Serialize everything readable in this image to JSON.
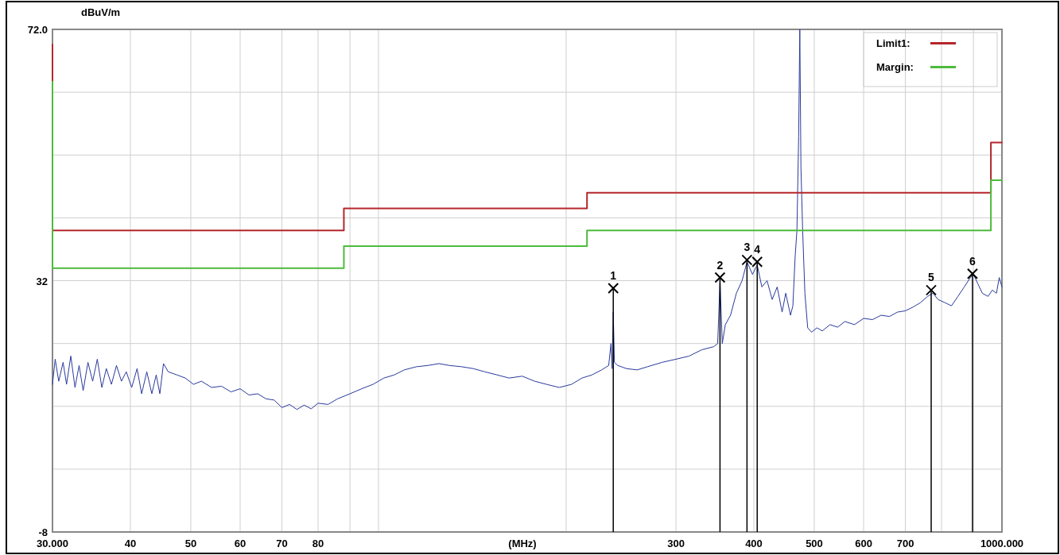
{
  "chart_data": {
    "type": "line",
    "ylabel": "dBuV/m",
    "xlabel": "(MHz)",
    "log": "x",
    "grid": true,
    "legend": "top right",
    "xlim": [
      30,
      1000
    ],
    "ylim": [
      -8,
      72
    ],
    "xticks": [
      {
        "value": 30,
        "label": "30.000"
      },
      40,
      50,
      60,
      70,
      80,
      {
        "value": 90,
        "label": null
      },
      {
        "value": 100,
        "label": null
      },
      {
        "value": 200,
        "label": null
      },
      300,
      400,
      500,
      600,
      700,
      {
        "value": 800,
        "label": null
      },
      {
        "value": 900,
        "label": null
      },
      {
        "value": 1000,
        "label": "1000.000"
      }
    ],
    "yticks": [
      {
        "value": 72,
        "label": "72.0"
      },
      {
        "value": 62,
        "label": null
      },
      {
        "value": 52,
        "label": null
      },
      {
        "value": 42,
        "label": null
      },
      32,
      {
        "value": 22,
        "label": null
      },
      {
        "value": 12,
        "label": null
      },
      {
        "value": 2,
        "label": null
      },
      -8
    ],
    "series": [
      {
        "color": "#2a3a9c",
        "x": [
          30,
          30.3,
          30.7,
          31.2,
          31.6,
          32.1,
          32.6,
          33.1,
          33.6,
          34.2,
          34.8,
          35.4,
          36,
          36.6,
          37.3,
          38,
          38.7,
          39.4,
          40.2,
          41,
          41.7,
          42.5,
          43.3,
          44,
          44.6,
          45.2,
          46,
          47.5,
          49,
          50.5,
          52,
          54,
          56,
          58,
          60,
          62,
          64,
          66,
          68,
          70,
          72,
          74,
          76,
          78,
          80,
          83,
          86,
          90,
          94,
          98,
          102,
          106,
          110,
          115,
          120,
          125,
          130,
          136,
          142,
          148,
          155,
          162,
          170,
          178,
          186,
          195,
          204,
          212,
          220,
          228,
          234,
          236,
          237,
          238,
          239,
          242,
          250,
          260,
          270,
          285,
          300,
          315,
          330,
          345,
          350,
          353,
          356,
          360,
          367,
          375,
          383,
          390,
          398,
          405,
          412,
          420,
          428,
          436,
          444,
          450,
          458,
          462,
          466,
          469,
          472,
          474,
          476,
          479,
          483,
          488,
          495,
          505,
          515,
          530,
          545,
          560,
          580,
          600,
          620,
          640,
          660,
          680,
          700,
          720,
          740,
          760,
          775,
          790,
          810,
          830,
          850,
          870,
          890,
          900,
          915,
          930,
          950,
          965,
          980,
          990,
          1000
        ],
        "values": [
          15.5,
          19.5,
          16,
          19,
          15.5,
          20,
          15,
          18.5,
          14.5,
          19,
          16,
          19.5,
          15,
          18,
          15.5,
          18.5,
          16,
          17.5,
          15,
          18,
          14,
          17.5,
          14,
          17,
          14,
          18.8,
          17.5,
          17,
          16.5,
          15.5,
          16,
          15,
          15.2,
          14.3,
          14.8,
          13.8,
          14,
          13.2,
          13,
          11.8,
          12.3,
          11.5,
          12.2,
          11.6,
          12.5,
          12.3,
          13.2,
          14,
          14.8,
          15.5,
          16.5,
          17,
          17.8,
          18.3,
          18.5,
          18.8,
          18.5,
          18.3,
          18,
          17.5,
          17,
          16.5,
          16.8,
          16,
          15.5,
          15,
          15.5,
          16.5,
          17,
          17.8,
          18.5,
          22,
          18,
          27,
          19,
          18.5,
          18,
          17.8,
          18.3,
          19,
          19.5,
          20,
          21,
          21.5,
          22,
          32,
          22,
          25,
          26.5,
          30,
          32,
          35,
          33,
          34.5,
          31,
          32,
          29,
          31,
          27,
          30,
          26.5,
          28,
          36,
          40,
          55,
          72,
          50,
          40,
          30,
          24.5,
          23.8,
          24.5,
          24,
          25,
          24.6,
          25.5,
          25,
          26,
          25.8,
          26.5,
          26.3,
          27,
          27.2,
          27.8,
          28.5,
          29.5,
          30,
          29,
          28.5,
          28,
          29.5,
          31,
          32.5,
          33,
          31.5,
          30,
          29.5,
          30.5,
          30,
          32.5,
          31
        ]
      },
      {
        "name": "Limit1:",
        "color": "#b5262b",
        "x": [
          30,
          30,
          88,
          88,
          216,
          216,
          960,
          960,
          1000
        ],
        "values": [
          69.6,
          40,
          40,
          43.5,
          43.5,
          46,
          46,
          54,
          54
        ]
      },
      {
        "name": "Margin:",
        "color": "#4cbb3c",
        "x": [
          30,
          30,
          88,
          88,
          216,
          216,
          960,
          960,
          1000
        ],
        "values": [
          63.7,
          34,
          34,
          37.5,
          37.5,
          40,
          40,
          48,
          48
        ]
      }
    ],
    "annotations": [
      {
        "text": "1",
        "x": 238,
        "y": 30.8
      },
      {
        "text": "2",
        "x": 353,
        "y": 32.5
      },
      {
        "text": "3",
        "x": 390,
        "y": 35.3
      },
      {
        "text": "4",
        "x": 405,
        "y": 35
      },
      {
        "text": "5",
        "x": 770,
        "y": 30.5
      },
      {
        "text": "6",
        "x": 897,
        "y": 33.1
      }
    ]
  }
}
